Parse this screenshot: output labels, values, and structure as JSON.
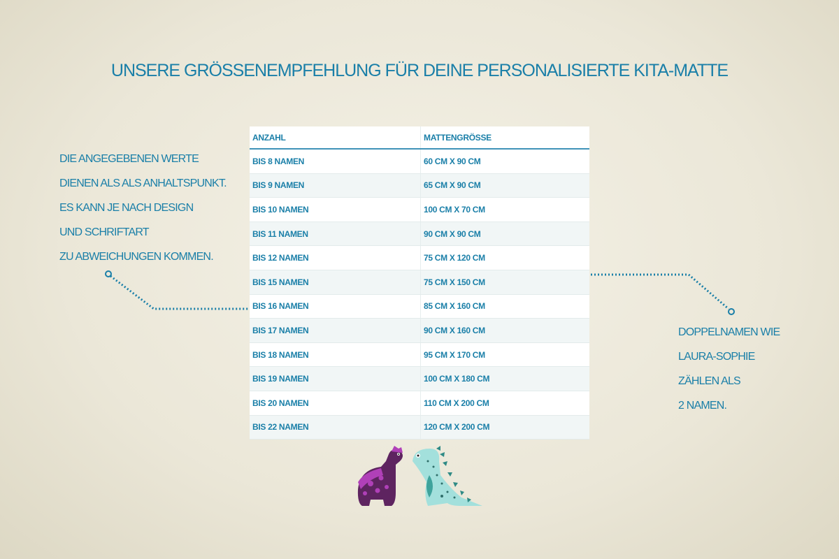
{
  "title": "Unsere Größenempfehlung für deine personalisierte Kita-Matte",
  "table": {
    "headers": [
      "Anzahl",
      "Mattengröße"
    ],
    "rows": [
      [
        "bis 8 Namen",
        "60 cm x 90 cm"
      ],
      [
        "bis 9 Namen",
        "65 cm x 90 cm"
      ],
      [
        "bis 10 Namen",
        "100 cm x 70 cm"
      ],
      [
        "bis 11 Namen",
        "90 cm x 90 cm"
      ],
      [
        "bis 12 Namen",
        "75 cm x 120 cm"
      ],
      [
        "bis 15 Namen",
        "75 cm x 150 cm"
      ],
      [
        "bis 16 Namen",
        "85 cm x 160 cm"
      ],
      [
        "bis 17 Namen",
        "90 cm x 160 cm"
      ],
      [
        "bis 18 Namen",
        "95 cm x 170 cm"
      ],
      [
        "bis 19 Namen",
        "100 cm x 180 cm"
      ],
      [
        "bis 20 Namen",
        "110 cm x 200 cm"
      ],
      [
        "bis 22 Namen",
        "120 cm x 200 cm"
      ]
    ]
  },
  "left_note": [
    "Die angegebenen Werte",
    "dienen als als Anhaltspunkt.",
    "Es kann je nach Design",
    "und Schriftart",
    "zu Abweichungen kommen."
  ],
  "right_note": [
    "Doppelnamen wie",
    "Laura-Sophie",
    "zählen als",
    "2 Namen."
  ],
  "colors": {
    "text": "#1a7fa8",
    "purple_dino": "#5e2460",
    "teal_dino": "#a3e0dc"
  }
}
